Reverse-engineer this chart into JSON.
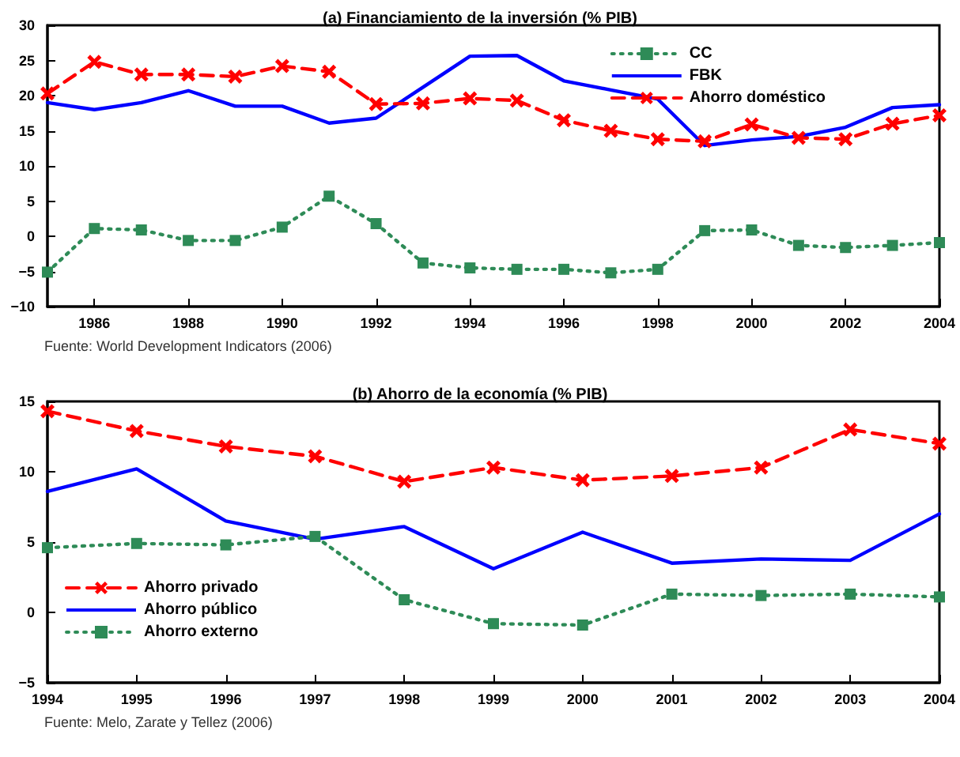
{
  "chart_data": [
    {
      "type": "line",
      "title": "(a) Financiamiento de la inversión (% PIB)",
      "x": [
        1985,
        1986,
        1987,
        1988,
        1989,
        1990,
        1991,
        1992,
        1993,
        1994,
        1995,
        1996,
        1997,
        1998,
        1999,
        2000,
        2001,
        2002,
        2003,
        2004
      ],
      "series": [
        {
          "name": "CC",
          "color": "#2e8b57",
          "marker": "square",
          "line_style": "dotted",
          "values": [
            -5.1,
            1.1,
            0.9,
            -0.6,
            -0.6,
            1.3,
            5.7,
            1.8,
            -3.8,
            -4.5,
            -4.7,
            -4.7,
            -5.2,
            -4.7,
            0.8,
            0.9,
            -1.3,
            -1.6,
            -1.3,
            -0.9
          ]
        },
        {
          "name": "FBK",
          "color": "#0000ff",
          "marker": "none",
          "line_style": "solid",
          "values": [
            19.0,
            18.0,
            19.0,
            20.7,
            18.5,
            18.5,
            16.1,
            16.8,
            21.2,
            25.6,
            25.7,
            22.1,
            20.8,
            19.5,
            12.9,
            13.7,
            14.2,
            15.5,
            18.3,
            18.7
          ]
        },
        {
          "name": "Ahorro doméstico",
          "color": "#ff0000",
          "marker": "cross",
          "line_style": "dashed",
          "values": [
            20.3,
            24.8,
            23.0,
            23.0,
            22.7,
            24.2,
            23.4,
            18.8,
            18.9,
            19.6,
            19.3,
            16.5,
            15.0,
            13.8,
            13.5,
            15.9,
            14.0,
            13.8,
            16.0,
            17.2
          ]
        }
      ],
      "xlim": [
        1985,
        2004
      ],
      "xticks": [
        1986,
        1988,
        1990,
        1992,
        1994,
        1996,
        1998,
        2000,
        2002,
        2004
      ],
      "ylim": [
        -10,
        30
      ],
      "yticks": [
        -10,
        -5,
        0,
        5,
        10,
        15,
        20,
        25,
        30
      ],
      "grid": false,
      "legend": "top right",
      "annotations": [
        "Fuente: World Development Indicators (2006)"
      ]
    },
    {
      "type": "line",
      "title": "(b) Ahorro de la economía (% PIB)",
      "x": [
        1994,
        1995,
        1996,
        1997,
        1998,
        1999,
        2000,
        2001,
        2002,
        2003,
        2004
      ],
      "series": [
        {
          "name": "Ahorro privado",
          "color": "#ff0000",
          "marker": "cross",
          "line_style": "dashed",
          "values": [
            14.3,
            12.9,
            11.8,
            11.1,
            9.3,
            10.3,
            9.4,
            9.7,
            10.3,
            13.0,
            12.0
          ]
        },
        {
          "name": "Ahorro público",
          "color": "#0000ff",
          "marker": "none",
          "line_style": "solid",
          "values": [
            8.6,
            10.2,
            6.5,
            5.2,
            6.1,
            3.1,
            5.7,
            3.5,
            3.8,
            3.7,
            7.0
          ]
        },
        {
          "name": "Ahorro externo",
          "color": "#2e8b57",
          "marker": "square",
          "line_style": "dotted",
          "values": [
            4.6,
            4.9,
            4.8,
            5.4,
            0.9,
            -0.8,
            -0.9,
            1.3,
            1.2,
            1.3,
            1.1
          ]
        }
      ],
      "xlim": [
        1994,
        2004
      ],
      "xticks": [
        1994,
        1995,
        1996,
        1997,
        1998,
        1999,
        2000,
        2001,
        2002,
        2003,
        2004
      ],
      "ylim": [
        -5,
        15
      ],
      "yticks": [
        -5,
        0,
        5,
        10,
        15
      ],
      "grid": false,
      "legend": "bottom left",
      "annotations": [
        "Fuente: Melo, Zarate y Tellez (2006)"
      ]
    }
  ]
}
